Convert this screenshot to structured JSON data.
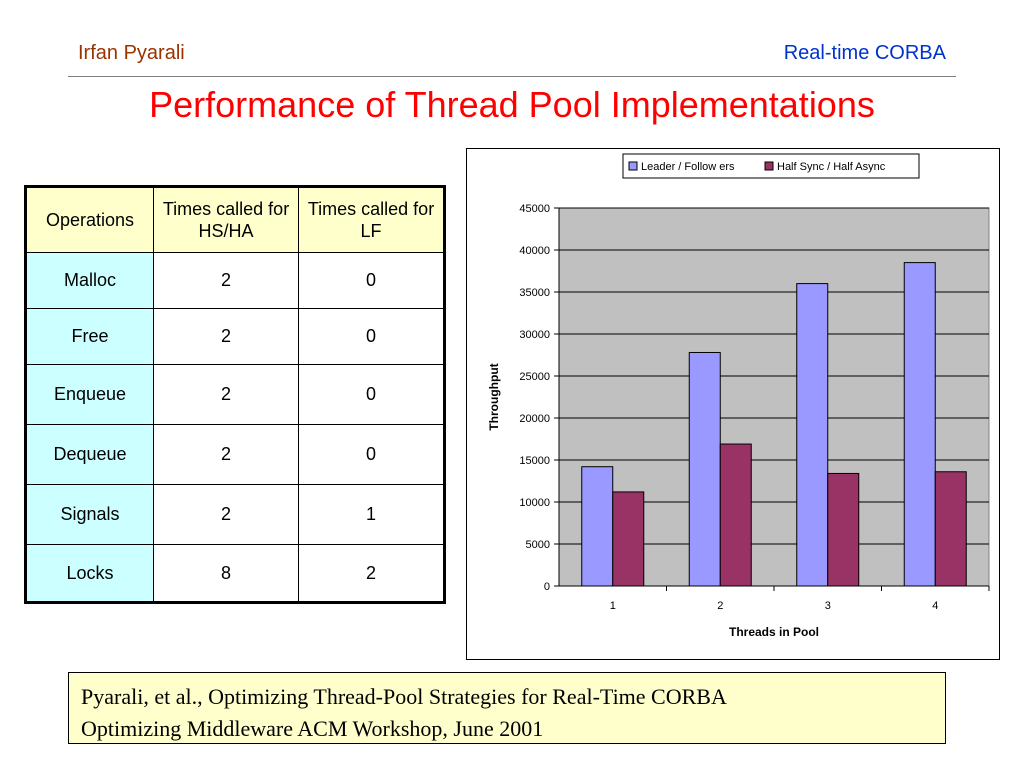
{
  "header": {
    "author": "Irfan Pyarali",
    "topic": "Real-time CORBA",
    "title": "Performance of Thread Pool Implementations"
  },
  "table": {
    "headers": [
      "Operations",
      "Times called for HS/HA",
      "Times called for LF"
    ],
    "rows": [
      [
        "Malloc",
        "2",
        "0"
      ],
      [
        "Free",
        "2",
        "0"
      ],
      [
        "Enqueue",
        "2",
        "0"
      ],
      [
        "Dequeue",
        "2",
        "0"
      ],
      [
        "Signals",
        "2",
        "1"
      ],
      [
        "Locks",
        "8",
        "2"
      ]
    ]
  },
  "chart_data": {
    "type": "bar",
    "categories": [
      "1",
      "2",
      "3",
      "4"
    ],
    "series": [
      {
        "name": "Leader / Follow ers",
        "values": [
          14200,
          27800,
          36000,
          38500
        ],
        "color": "#9999ff"
      },
      {
        "name": "Half Sync / Half Async",
        "values": [
          11200,
          16900,
          13400,
          13600
        ],
        "color": "#993366"
      }
    ],
    "xlabel": "Threads in Pool",
    "ylabel": "Throughput",
    "ylim": [
      0,
      45000
    ],
    "yticks": [
      0,
      5000,
      10000,
      15000,
      20000,
      25000,
      30000,
      35000,
      40000,
      45000
    ],
    "grid": true,
    "plot_background": "#c0c0c0",
    "legend_position": "top"
  },
  "reference": {
    "line1": "Pyarali, et al., Optimizing Thread-Pool Strategies for Real-Time CORBA",
    "line2": "Optimizing Middleware ACM Workshop, June 2001"
  }
}
